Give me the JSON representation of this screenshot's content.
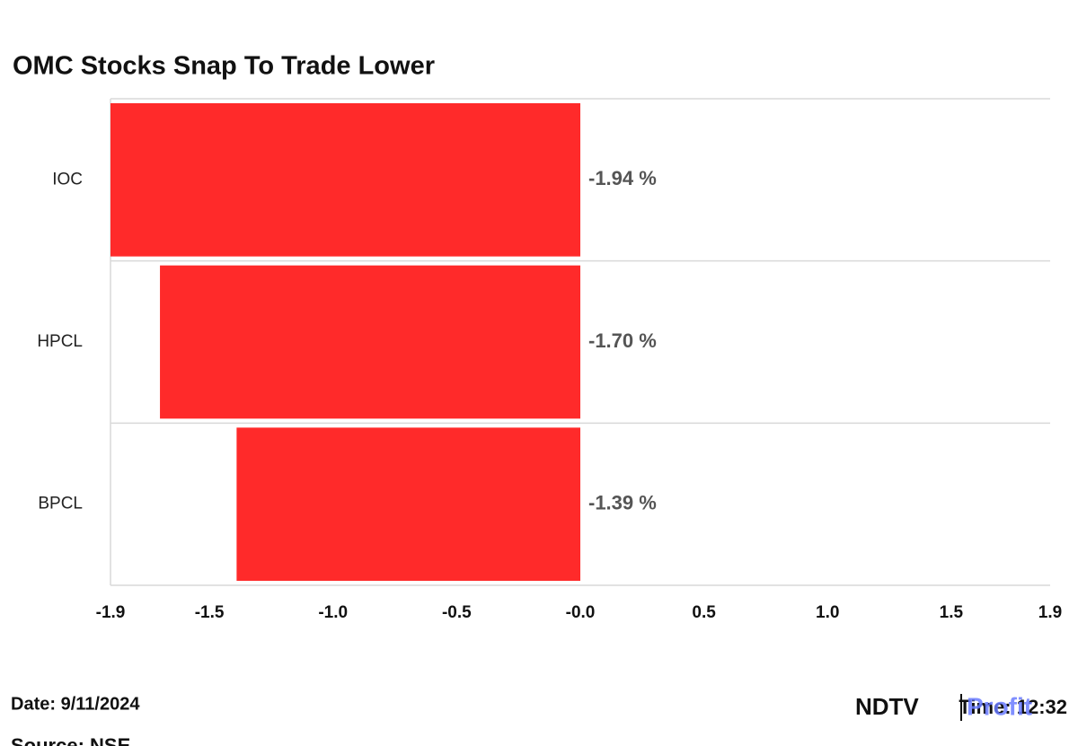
{
  "chart_data": {
    "type": "hbar",
    "title": "OMC Stocks Snap To Trade Lower",
    "categories": [
      "IOC",
      "HPCL",
      "BPCL"
    ],
    "values": [
      -1.94,
      -1.7,
      -1.39
    ],
    "value_labels": [
      "-1.94 %",
      "-1.70 %",
      "-1.39 %"
    ],
    "color": "#ff2a2a",
    "xlim": [
      -1.9,
      1.9
    ],
    "xticks": [
      -1.9,
      -1.5,
      {
        "value": -1,
        "label": "-1.0"
      },
      -0.5,
      {
        "value": 0,
        "label": "-0.0"
      },
      0.5,
      {
        "value": 1,
        "label": "1.0"
      },
      1.5,
      1.9
    ],
    "grid": true
  },
  "footer": {
    "date": "Date: 9/11/2024",
    "time": "Time: 12:32",
    "source": "Source: NSE",
    "logo": "NDTV",
    "logo_sub": "Profit"
  }
}
